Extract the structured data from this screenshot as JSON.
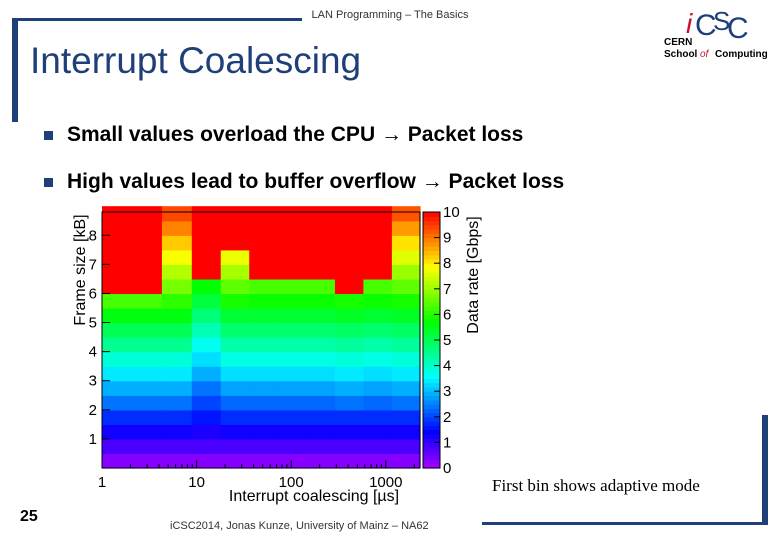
{
  "header": {
    "text": "LAN Programming – The Basics"
  },
  "slide": {
    "title": "Interrupt Coalescing",
    "bullets": [
      "Small values overload the CPU → Packet loss",
      "High values lead to buffer overflow → Packet loss"
    ],
    "note": "First bin shows adaptive mode",
    "page_number": "25",
    "footer": "iCSC2014, Jonas Kunze, University of Mainz – NA62"
  },
  "logo": {
    "letters": [
      "i",
      "C",
      "S",
      "C"
    ],
    "line1": "CERN",
    "line2_a": "School",
    "line2_of": "of",
    "line2_b": "Computing"
  },
  "colors": {
    "accent": "#1f3f78",
    "logo_red": "#c8102e"
  },
  "chart_data": {
    "type": "heatmap",
    "xlabel": "Interrupt coalescing [µs]",
    "ylabel": "Frame size [kB]",
    "zlabel": "Data rate [Gbps]",
    "x_scale": "log",
    "x_ticks": [
      "1",
      "10",
      "100",
      "1000"
    ],
    "y_ticks": [
      "1",
      "2",
      "3",
      "4",
      "5",
      "6",
      "7",
      "8"
    ],
    "z_ticks": [
      "0",
      "1",
      "2",
      "3",
      "4",
      "5",
      "6",
      "7",
      "8",
      "9",
      "10"
    ],
    "zlim": [
      0,
      10
    ],
    "ylim": [
      0,
      8.8
    ],
    "x_bins": [
      "adaptive",
      "5",
      "10",
      "20",
      "50",
      "100",
      "200",
      "500",
      "1000",
      "2000"
    ],
    "y_bins_kB": [
      0.25,
      0.75,
      1.25,
      1.75,
      2.25,
      2.75,
      3.25,
      3.75,
      4.25,
      4.75,
      5.25,
      5.75,
      6.25,
      6.75,
      7.25,
      7.75,
      8.25,
      8.75
    ],
    "columns": [
      {
        "x_from": 1,
        "x_to": 4.3,
        "z": [
          0.3,
          0.8,
          1.3,
          1.8,
          2.4,
          2.9,
          3.4,
          3.9,
          4.5,
          5.0,
          5.6,
          6.3,
          10,
          10,
          10,
          10,
          10,
          10
        ]
      },
      {
        "x_from": 4.3,
        "x_to": 8.9,
        "z": [
          0.3,
          0.8,
          1.3,
          1.8,
          2.4,
          2.9,
          3.4,
          3.9,
          4.5,
          5.0,
          5.6,
          6.1,
          6.7,
          7.2,
          7.8,
          8.3,
          8.9,
          9.4
        ]
      },
      {
        "x_from": 8.9,
        "x_to": 18,
        "z": [
          0.3,
          0.8,
          1.2,
          1.6,
          2.0,
          2.4,
          2.9,
          3.3,
          3.7,
          4.2,
          4.7,
          5.2,
          5.7,
          10,
          10,
          10,
          10,
          10
        ]
      },
      {
        "x_from": 18,
        "x_to": 36,
        "z": [
          0.3,
          0.8,
          1.3,
          1.8,
          2.3,
          2.8,
          3.3,
          3.8,
          4.3,
          4.8,
          5.3,
          5.9,
          6.5,
          7.1,
          7.7,
          10,
          10,
          10
        ]
      },
      {
        "x_from": 36,
        "x_to": 72,
        "z": [
          0.3,
          0.8,
          1.3,
          1.8,
          2.3,
          2.8,
          3.3,
          3.8,
          4.3,
          4.8,
          5.3,
          5.8,
          6.3,
          10,
          10,
          10,
          10,
          10
        ]
      },
      {
        "x_from": 72,
        "x_to": 145,
        "z": [
          0.3,
          0.8,
          1.3,
          1.8,
          2.3,
          2.8,
          3.3,
          3.8,
          4.3,
          4.8,
          5.3,
          5.8,
          6.3,
          10,
          10,
          10,
          10,
          10
        ]
      },
      {
        "x_from": 145,
        "x_to": 290,
        "z": [
          0.3,
          0.8,
          1.3,
          1.8,
          2.3,
          2.8,
          3.3,
          3.8,
          4.3,
          4.8,
          5.3,
          5.8,
          6.3,
          10,
          10,
          10,
          10,
          10
        ]
      },
      {
        "x_from": 290,
        "x_to": 580,
        "z": [
          0.3,
          0.8,
          1.3,
          1.8,
          2.4,
          2.9,
          3.4,
          3.9,
          4.4,
          4.9,
          5.4,
          5.9,
          10,
          10,
          10,
          10,
          10,
          10
        ]
      },
      {
        "x_from": 580,
        "x_to": 1160,
        "z": [
          0.3,
          0.8,
          1.3,
          1.8,
          2.3,
          2.8,
          3.3,
          3.8,
          4.3,
          4.8,
          5.3,
          5.8,
          6.3,
          10,
          10,
          10,
          10,
          10
        ]
      },
      {
        "x_from": 1160,
        "x_to": 2300,
        "z": [
          0.3,
          0.8,
          1.3,
          1.8,
          2.4,
          2.9,
          3.4,
          3.9,
          4.4,
          4.9,
          5.4,
          5.9,
          6.5,
          7.0,
          7.6,
          8.1,
          8.7,
          9.3
        ]
      }
    ]
  }
}
